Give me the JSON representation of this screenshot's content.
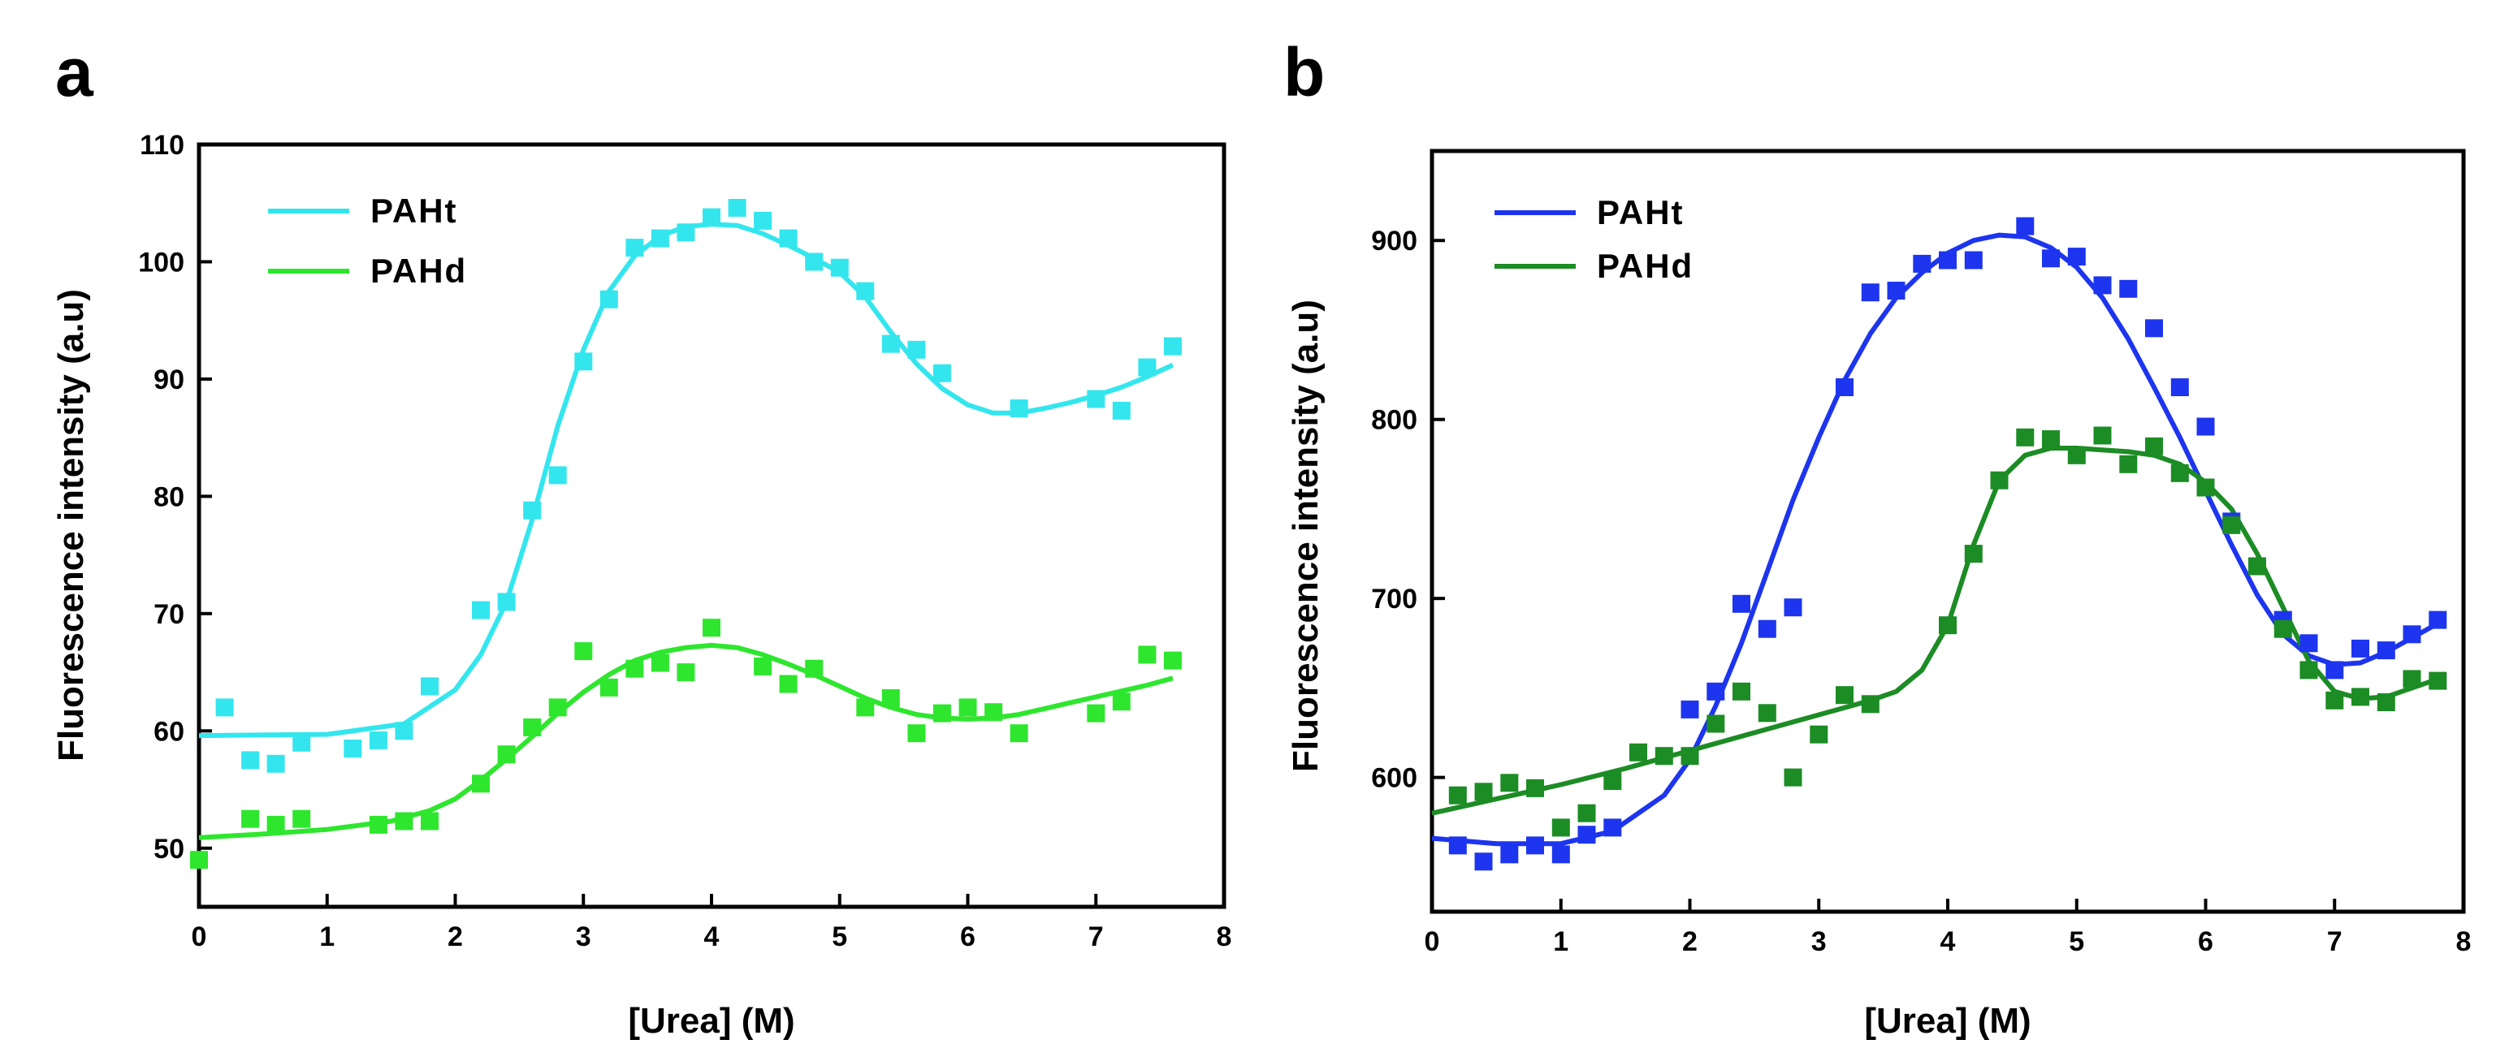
{
  "chart_data": [
    {
      "panel": "a",
      "type": "scatter",
      "title": "",
      "xlabel": "[Urea] (M)",
      "ylabel": "Fluorescence intensity (a.u)",
      "xlim": [
        0,
        8
      ],
      "ylim": [
        45,
        110
      ],
      "xticks": [
        0,
        1,
        2,
        3,
        4,
        5,
        6,
        7,
        8
      ],
      "yticks": [
        50,
        60,
        70,
        80,
        90,
        100,
        110
      ],
      "grid": false,
      "legend_position": "top-left",
      "series": [
        {
          "name": "PAHt",
          "color": "#33e6ee",
          "points": [
            [
              0.2,
              62
            ],
            [
              0.4,
              57.5
            ],
            [
              0.6,
              57.2
            ],
            [
              0.8,
              59
            ],
            [
              1.2,
              58.5
            ],
            [
              1.4,
              59.2
            ],
            [
              1.6,
              60
            ],
            [
              1.8,
              63.8
            ],
            [
              2.2,
              70.3
            ],
            [
              2.4,
              71
            ],
            [
              2.6,
              78.8
            ],
            [
              2.8,
              81.8
            ],
            [
              3.0,
              91.5
            ],
            [
              3.2,
              96.8
            ],
            [
              3.4,
              101.2
            ],
            [
              3.6,
              102
            ],
            [
              3.8,
              102.5
            ],
            [
              4.0,
              103.8
            ],
            [
              4.2,
              104.6
            ],
            [
              4.4,
              103.5
            ],
            [
              4.6,
              102
            ],
            [
              4.8,
              100
            ],
            [
              5.0,
              99.5
            ],
            [
              5.2,
              97.5
            ],
            [
              5.4,
              93
            ],
            [
              5.6,
              92.5
            ],
            [
              5.8,
              90.5
            ],
            [
              6.4,
              87.5
            ],
            [
              7.0,
              88.3
            ],
            [
              7.2,
              87.3
            ],
            [
              7.4,
              91
            ],
            [
              7.6,
              92.8
            ]
          ],
          "fit": [
            [
              0,
              59.6
            ],
            [
              1,
              59.7
            ],
            [
              1.6,
              60.6
            ],
            [
              2.0,
              63.5
            ],
            [
              2.2,
              66.5
            ],
            [
              2.4,
              71
            ],
            [
              2.6,
              78
            ],
            [
              2.8,
              86
            ],
            [
              3.0,
              92.5
            ],
            [
              3.2,
              97.5
            ],
            [
              3.4,
              100.5
            ],
            [
              3.6,
              102.2
            ],
            [
              3.8,
              103
            ],
            [
              4.0,
              103.2
            ],
            [
              4.2,
              103.1
            ],
            [
              4.4,
              102.4
            ],
            [
              4.6,
              101.4
            ],
            [
              4.8,
              100.3
            ],
            [
              5.0,
              99.1
            ],
            [
              5.2,
              97
            ],
            [
              5.4,
              94
            ],
            [
              5.6,
              91.3
            ],
            [
              5.8,
              89.2
            ],
            [
              6.0,
              87.8
            ],
            [
              6.2,
              87.1
            ],
            [
              6.4,
              87.1
            ],
            [
              6.6,
              87.5
            ],
            [
              6.8,
              88
            ],
            [
              7.0,
              88.6
            ],
            [
              7.2,
              89.3
            ],
            [
              7.4,
              90.2
            ],
            [
              7.6,
              91.2
            ]
          ]
        },
        {
          "name": "PAHd",
          "color": "#2ee62e",
          "points": [
            [
              0,
              49
            ],
            [
              0.4,
              52.5
            ],
            [
              0.6,
              52
            ],
            [
              0.8,
              52.5
            ],
            [
              1.4,
              52
            ],
            [
              1.6,
              52.3
            ],
            [
              1.8,
              52.3
            ],
            [
              2.2,
              55.5
            ],
            [
              2.4,
              58
            ],
            [
              2.6,
              60.3
            ],
            [
              2.8,
              62
            ],
            [
              3.0,
              66.8
            ],
            [
              3.2,
              63.7
            ],
            [
              3.4,
              65.3
            ],
            [
              3.6,
              65.8
            ],
            [
              3.8,
              65
            ],
            [
              4.0,
              68.8
            ],
            [
              4.4,
              65.5
            ],
            [
              4.6,
              64
            ],
            [
              4.8,
              65.3
            ],
            [
              5.2,
              62
            ],
            [
              5.4,
              62.8
            ],
            [
              5.6,
              59.8
            ],
            [
              5.8,
              61.5
            ],
            [
              6.0,
              62
            ],
            [
              6.2,
              61.6
            ],
            [
              6.4,
              59.8
            ],
            [
              7.0,
              61.5
            ],
            [
              7.2,
              62.5
            ],
            [
              7.4,
              66.5
            ],
            [
              7.6,
              66
            ]
          ],
          "fit": [
            [
              0,
              50.9
            ],
            [
              0.5,
              51.2
            ],
            [
              1.0,
              51.6
            ],
            [
              1.5,
              52.3
            ],
            [
              1.8,
              53.2
            ],
            [
              2.0,
              54.2
            ],
            [
              2.2,
              55.8
            ],
            [
              2.4,
              57.6
            ],
            [
              2.6,
              59.5
            ],
            [
              2.8,
              61.5
            ],
            [
              3.0,
              63.3
            ],
            [
              3.2,
              64.8
            ],
            [
              3.4,
              66
            ],
            [
              3.6,
              66.7
            ],
            [
              3.8,
              67.1
            ],
            [
              4.0,
              67.3
            ],
            [
              4.2,
              67.1
            ],
            [
              4.4,
              66.5
            ],
            [
              4.6,
              65.7
            ],
            [
              4.8,
              64.8
            ],
            [
              5.0,
              63.8
            ],
            [
              5.2,
              62.8
            ],
            [
              5.4,
              62
            ],
            [
              5.6,
              61.4
            ],
            [
              5.8,
              61.1
            ],
            [
              6.0,
              61
            ],
            [
              6.2,
              61.1
            ],
            [
              6.4,
              61.4
            ],
            [
              6.6,
              61.9
            ],
            [
              6.8,
              62.4
            ],
            [
              7.0,
              62.9
            ],
            [
              7.2,
              63.4
            ],
            [
              7.4,
              63.9
            ],
            [
              7.6,
              64.5
            ]
          ]
        }
      ]
    },
    {
      "panel": "b",
      "type": "scatter",
      "title": "",
      "xlabel": "[Urea] (M)",
      "ylabel": "Fluorescence intensity (a.u)",
      "xlim": [
        0,
        8
      ],
      "ylim": [
        525,
        950
      ],
      "xticks": [
        0,
        1,
        2,
        3,
        4,
        5,
        6,
        7,
        8
      ],
      "yticks": [
        600,
        700,
        800,
        900
      ],
      "grid": false,
      "legend_position": "top-left",
      "series": [
        {
          "name": "PAHt",
          "color": "#1d35ee",
          "points": [
            [
              0.2,
              562
            ],
            [
              0.4,
              553
            ],
            [
              0.6,
              557
            ],
            [
              0.8,
              562
            ],
            [
              1.0,
              557
            ],
            [
              1.2,
              568
            ],
            [
              1.4,
              572
            ],
            [
              2.0,
              638
            ],
            [
              2.2,
              648
            ],
            [
              2.4,
              697
            ],
            [
              2.6,
              683
            ],
            [
              2.8,
              695
            ],
            [
              3.2,
              818
            ],
            [
              3.4,
              871
            ],
            [
              3.6,
              872
            ],
            [
              3.8,
              887
            ],
            [
              4.0,
              889
            ],
            [
              4.2,
              889
            ],
            [
              4.6,
              908
            ],
            [
              4.8,
              890
            ],
            [
              5.0,
              891
            ],
            [
              5.2,
              875
            ],
            [
              5.4,
              873
            ],
            [
              5.6,
              851
            ],
            [
              5.8,
              818
            ],
            [
              6.0,
              796
            ],
            [
              6.2,
              743
            ],
            [
              6.6,
              688
            ],
            [
              6.8,
              675
            ],
            [
              7.0,
              660
            ],
            [
              7.2,
              672
            ],
            [
              7.4,
              671
            ],
            [
              7.6,
              680
            ],
            [
              7.8,
              688
            ]
          ],
          "fit": [
            [
              0,
              566
            ],
            [
              0.5,
              563
            ],
            [
              1.0,
              563
            ],
            [
              1.4,
              570
            ],
            [
              1.8,
              590
            ],
            [
              2.0,
              610
            ],
            [
              2.2,
              640
            ],
            [
              2.4,
              675
            ],
            [
              2.6,
              715
            ],
            [
              2.8,
              755
            ],
            [
              3.0,
              790
            ],
            [
              3.2,
              822
            ],
            [
              3.4,
              848
            ],
            [
              3.6,
              868
            ],
            [
              3.8,
              882
            ],
            [
              4.0,
              893
            ],
            [
              4.2,
              900
            ],
            [
              4.4,
              903
            ],
            [
              4.6,
              902
            ],
            [
              4.8,
              896
            ],
            [
              5.0,
              885
            ],
            [
              5.2,
              868
            ],
            [
              5.4,
              845
            ],
            [
              5.6,
              818
            ],
            [
              5.8,
              790
            ],
            [
              6.0,
              760
            ],
            [
              6.2,
              730
            ],
            [
              6.4,
              702
            ],
            [
              6.6,
              680
            ],
            [
              6.8,
              668
            ],
            [
              7.0,
              663
            ],
            [
              7.2,
              664
            ],
            [
              7.4,
              670
            ],
            [
              7.6,
              678
            ],
            [
              7.8,
              686
            ]
          ]
        },
        {
          "name": "PAHd",
          "color": "#1c8c24",
          "points": [
            [
              0.2,
              590
            ],
            [
              0.4,
              592
            ],
            [
              0.6,
              597
            ],
            [
              0.8,
              594
            ],
            [
              1.0,
              572
            ],
            [
              1.2,
              580
            ],
            [
              1.4,
              598
            ],
            [
              1.6,
              614
            ],
            [
              1.8,
              612
            ],
            [
              2.0,
              612
            ],
            [
              2.2,
              630
            ],
            [
              2.4,
              648
            ],
            [
              2.6,
              636
            ],
            [
              2.8,
              600
            ],
            [
              3.0,
              624
            ],
            [
              3.2,
              646
            ],
            [
              3.4,
              641
            ],
            [
              4.0,
              685
            ],
            [
              4.2,
              725
            ],
            [
              4.4,
              766
            ],
            [
              4.6,
              790
            ],
            [
              4.8,
              789
            ],
            [
              5.0,
              780
            ],
            [
              5.2,
              791
            ],
            [
              5.4,
              775
            ],
            [
              5.6,
              785
            ],
            [
              5.8,
              770
            ],
            [
              6.0,
              762
            ],
            [
              6.2,
              741
            ],
            [
              6.4,
              718
            ],
            [
              6.6,
              683
            ],
            [
              6.8,
              660
            ],
            [
              7.0,
              643
            ],
            [
              7.2,
              645
            ],
            [
              7.4,
              642
            ],
            [
              7.6,
              655
            ],
            [
              7.8,
              654
            ]
          ],
          "fit": [
            [
              0,
              580
            ],
            [
              0.5,
              588
            ],
            [
              1.0,
              596
            ],
            [
              1.5,
              605
            ],
            [
              2.0,
              615
            ],
            [
              2.5,
              625
            ],
            [
              3.0,
              635
            ],
            [
              3.4,
              643
            ],
            [
              3.6,
              648
            ],
            [
              3.8,
              660
            ],
            [
              4.0,
              685
            ],
            [
              4.2,
              730
            ],
            [
              4.4,
              766
            ],
            [
              4.6,
              780
            ],
            [
              4.8,
              784
            ],
            [
              5.0,
              784
            ],
            [
              5.2,
              783
            ],
            [
              5.4,
              782
            ],
            [
              5.6,
              780
            ],
            [
              5.8,
              775
            ],
            [
              6.0,
              765
            ],
            [
              6.2,
              750
            ],
            [
              6.4,
              725
            ],
            [
              6.6,
              695
            ],
            [
              6.8,
              665
            ],
            [
              7.0,
              648
            ],
            [
              7.2,
              644
            ],
            [
              7.4,
              645
            ],
            [
              7.6,
              650
            ],
            [
              7.8,
              655
            ]
          ]
        }
      ]
    }
  ]
}
